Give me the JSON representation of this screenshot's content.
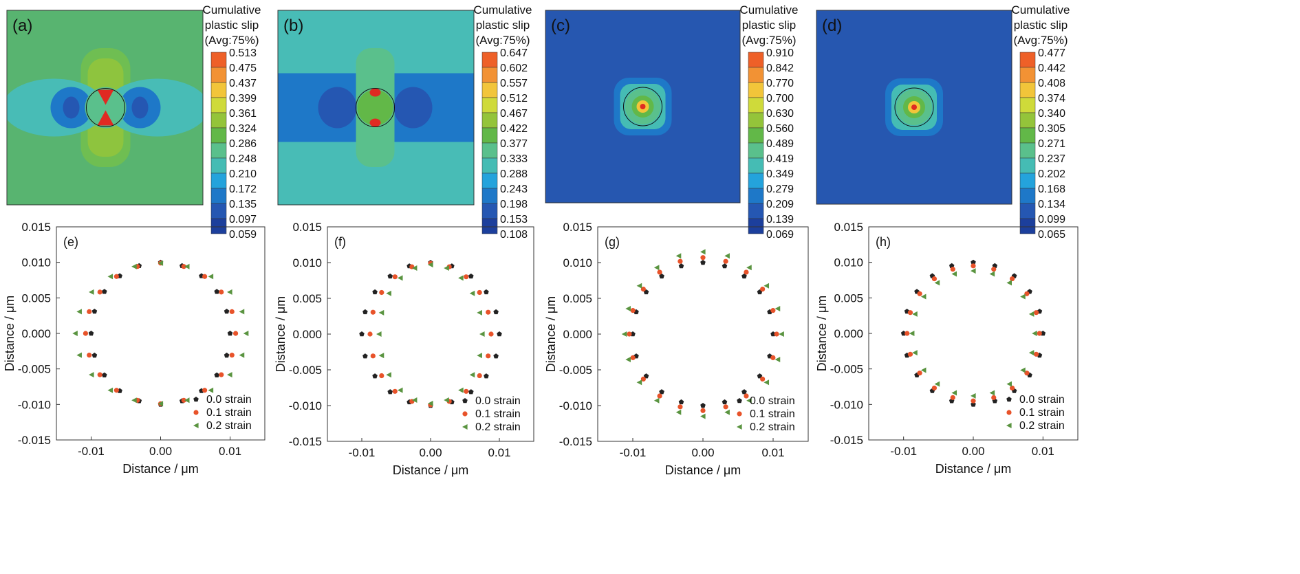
{
  "colorbar_title": [
    "Cumulative",
    "plastic slip",
    "(Avg:75%)"
  ],
  "legend_colors": [
    "#1c3f9c",
    "#2557b2",
    "#1e78c8",
    "#24a3dc",
    "#45bcb4",
    "#5ac08c",
    "#62b848",
    "#94c43a",
    "#cfda3a",
    "#f2c53a",
    "#f29234",
    "#ee6028",
    "#e02a22"
  ],
  "contour_panels": [
    {
      "label": "(a)",
      "background": "#58b470",
      "levels": [
        "0.513",
        "0.475",
        "0.437",
        "0.399",
        "0.361",
        "0.324",
        "0.286",
        "0.248",
        "0.210",
        "0.172",
        "0.135",
        "0.097",
        "0.059"
      ]
    },
    {
      "label": "(b)",
      "background": "#48bcb6",
      "levels": [
        "0.647",
        "0.602",
        "0.557",
        "0.512",
        "0.467",
        "0.422",
        "0.377",
        "0.333",
        "0.288",
        "0.243",
        "0.198",
        "0.153",
        "0.108"
      ]
    },
    {
      "label": "(c)",
      "background": "#2657b0",
      "levels": [
        "0.910",
        "0.842",
        "0.770",
        "0.700",
        "0.630",
        "0.560",
        "0.489",
        "0.419",
        "0.349",
        "0.279",
        "0.209",
        "0.139",
        "0.069"
      ]
    },
    {
      "label": "(d)",
      "background": "#2657b0",
      "levels": [
        "0.477",
        "0.442",
        "0.408",
        "0.374",
        "0.340",
        "0.305",
        "0.271",
        "0.237",
        "0.202",
        "0.168",
        "0.134",
        "0.099",
        "0.065"
      ]
    }
  ],
  "chart_data": [
    {
      "type": "scatter",
      "label": "(e)",
      "xlabel": "Distance / μm",
      "ylabel": "Distance / μm",
      "xlim": [
        -0.015,
        0.015
      ],
      "ylim": [
        -0.015,
        0.015
      ],
      "xticks": [
        "-0.01",
        "0.00",
        "0.01"
      ],
      "yticks": [
        "0.015",
        "0.010",
        "0.005",
        "0.000",
        "-0.005",
        "-0.010",
        "-0.015"
      ],
      "legend": "bottom-right",
      "series": [
        {
          "name": "0.0 strain",
          "color": "#222222",
          "marker": "pentagon",
          "r": 0.01,
          "ax": 1.0,
          "ay": 1.0
        },
        {
          "name": "0.1 strain",
          "color": "#e8532a",
          "marker": "circle",
          "r": 0.01,
          "ax": 1.08,
          "ay": 0.99
        },
        {
          "name": "0.2 strain",
          "color": "#5a9440",
          "marker": "triangle",
          "r": 0.01,
          "ax": 1.23,
          "ay": 0.99
        }
      ]
    },
    {
      "type": "scatter",
      "label": "(f)",
      "xlabel": "Distance / μm",
      "ylabel": "Distance / μm",
      "xlim": [
        -0.015,
        0.015
      ],
      "ylim": [
        -0.015,
        0.015
      ],
      "xticks": [
        "-0.01",
        "0.00",
        "0.01"
      ],
      "yticks": [
        "0.015",
        "0.010",
        "0.005",
        "0.000",
        "-0.005",
        "-0.010",
        "-0.015"
      ],
      "legend": "bottom-right",
      "series": [
        {
          "name": "0.0 strain",
          "color": "#222222",
          "marker": "pentagon",
          "r": 0.01,
          "ax": 1.0,
          "ay": 1.0
        },
        {
          "name": "0.1 strain",
          "color": "#e8532a",
          "marker": "circle",
          "r": 0.01,
          "ax": 0.88,
          "ay": 0.99
        },
        {
          "name": "0.2 strain",
          "color": "#5a9440",
          "marker": "triangle",
          "r": 0.01,
          "ax": 0.75,
          "ay": 0.97
        }
      ]
    },
    {
      "type": "scatter",
      "label": "(g)",
      "xlabel": "Distance / μm",
      "ylabel": "Distance / μm",
      "xlim": [
        -0.015,
        0.015
      ],
      "ylim": [
        -0.015,
        0.015
      ],
      "xticks": [
        "-0.01",
        "0.00",
        "0.01"
      ],
      "yticks": [
        "0.015",
        "0.010",
        "0.005",
        "0.000",
        "-0.005",
        "-0.010",
        "-0.015"
      ],
      "legend": "bottom-right",
      "series": [
        {
          "name": "0.0 strain",
          "color": "#222222",
          "marker": "pentagon",
          "r": 0.01,
          "ax": 1.0,
          "ay": 1.0
        },
        {
          "name": "0.1 strain",
          "color": "#e8532a",
          "marker": "circle",
          "r": 0.01,
          "ax": 1.05,
          "ay": 1.07
        },
        {
          "name": "0.2 strain",
          "color": "#5a9440",
          "marker": "triangle",
          "r": 0.01,
          "ax": 1.12,
          "ay": 1.15
        }
      ]
    },
    {
      "type": "scatter",
      "label": "(h)",
      "xlabel": "Distance / μm",
      "ylabel": "Distance / μm",
      "xlim": [
        -0.015,
        0.015
      ],
      "ylim": [
        -0.015,
        0.015
      ],
      "xticks": [
        "-0.01",
        "0.00",
        "0.01"
      ],
      "yticks": [
        "0.015",
        "0.010",
        "0.005",
        "0.000",
        "-0.005",
        "-0.010",
        "-0.015"
      ],
      "legend": "bottom-right",
      "series": [
        {
          "name": "0.0 strain",
          "color": "#222222",
          "marker": "pentagon",
          "r": 0.01,
          "ax": 1.0,
          "ay": 1.0
        },
        {
          "name": "0.1 strain",
          "color": "#e8532a",
          "marker": "circle",
          "r": 0.01,
          "ax": 0.95,
          "ay": 0.95
        },
        {
          "name": "0.2 strain",
          "color": "#5a9440",
          "marker": "triangle",
          "r": 0.01,
          "ax": 0.88,
          "ay": 0.88
        }
      ]
    }
  ]
}
